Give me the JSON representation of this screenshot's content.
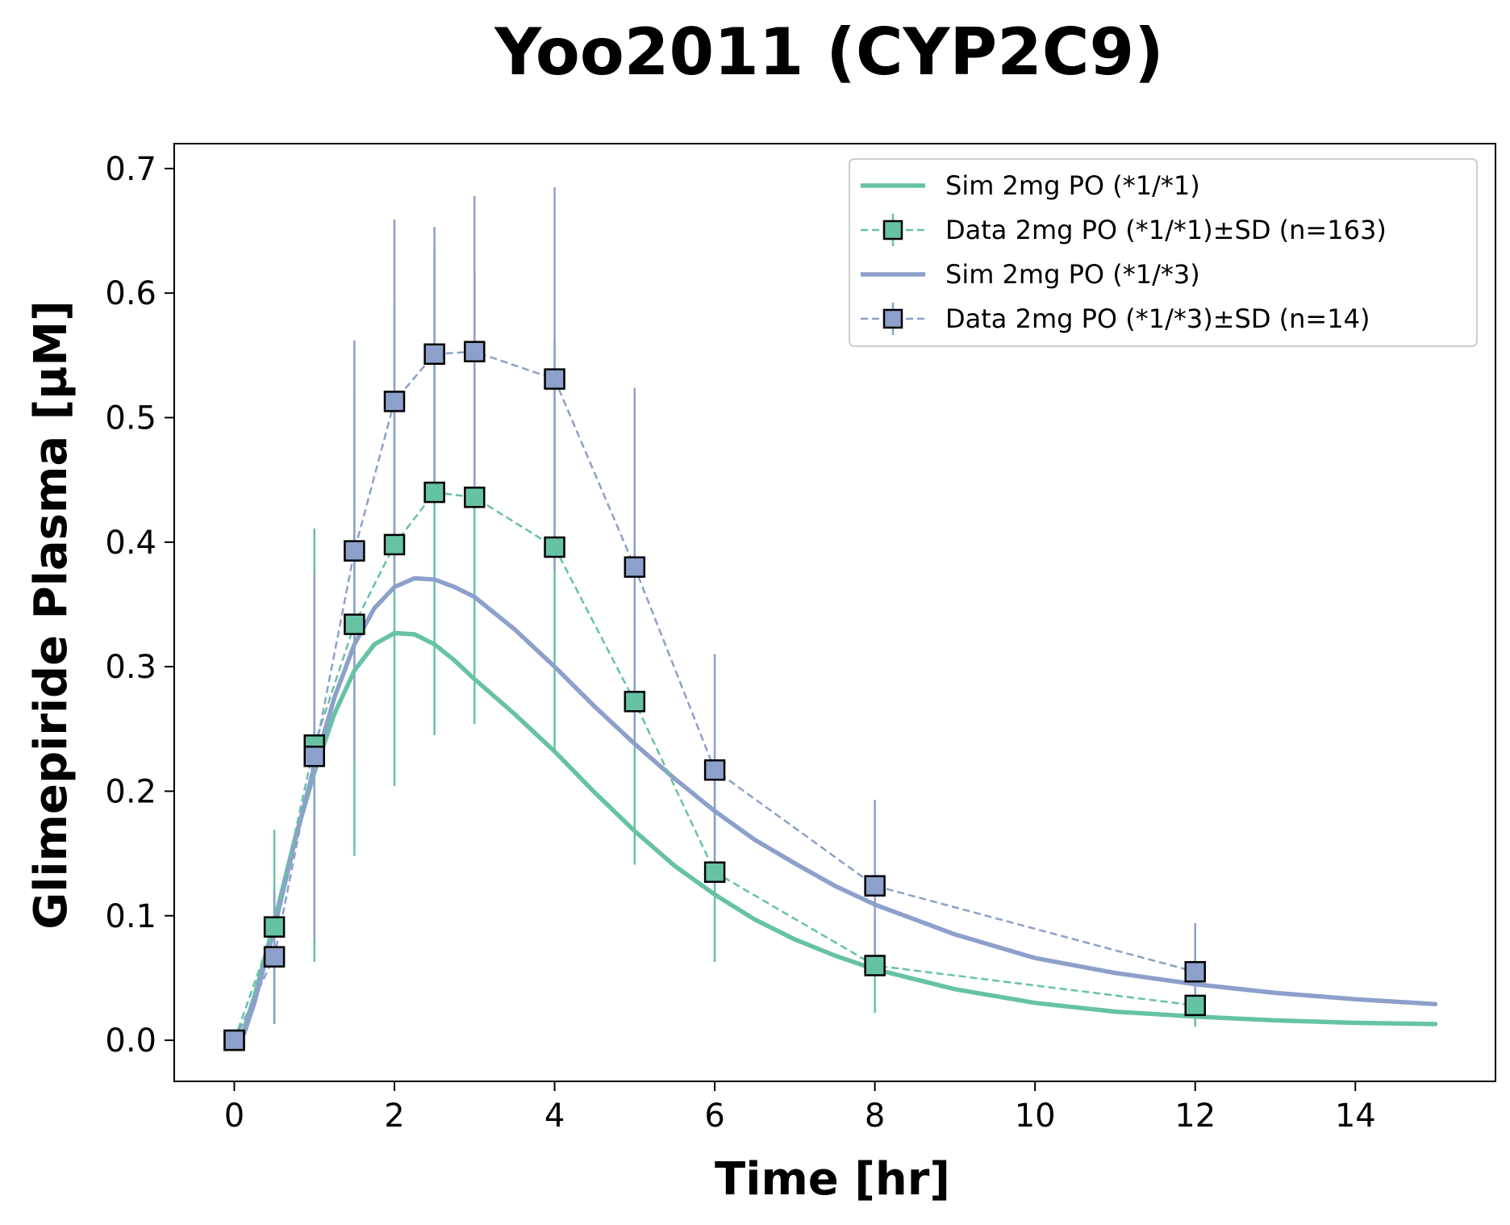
{
  "chart_data": {
    "type": "line",
    "title": "Yoo2011 (CYP2C9)",
    "xlabel": "Time [hr]",
    "ylabel": "Glimepiride Plasma [µM]",
    "xlim": [
      -0.75,
      15.75
    ],
    "ylim": [
      -0.033,
      0.72
    ],
    "xticks": [
      0,
      2,
      4,
      6,
      8,
      10,
      12,
      14
    ],
    "yticks": [
      0.0,
      0.1,
      0.2,
      0.3,
      0.4,
      0.5,
      0.6,
      0.7
    ],
    "xtick_labels": [
      "0",
      "2",
      "4",
      "6",
      "8",
      "10",
      "12",
      "14"
    ],
    "ytick_labels": [
      "0.0",
      "0.1",
      "0.2",
      "0.3",
      "0.4",
      "0.5",
      "0.6",
      "0.7"
    ],
    "grid": false,
    "legend_position": "top-right",
    "series": [
      {
        "name": "Sim 2mg PO (*1/*1)",
        "kind": "simulation",
        "color": "#66c2a5",
        "x": [
          0,
          0.1,
          0.25,
          0.5,
          0.75,
          1.0,
          1.25,
          1.5,
          1.75,
          2.0,
          2.25,
          2.5,
          2.75,
          3.0,
          3.5,
          4.0,
          4.5,
          5.0,
          5.5,
          6.0,
          6.5,
          7.0,
          7.5,
          8.0,
          9.0,
          10.0,
          11.0,
          12.0,
          13.0,
          14.0,
          15.0
        ],
        "y": [
          0.0,
          0.005,
          0.035,
          0.095,
          0.16,
          0.215,
          0.262,
          0.297,
          0.318,
          0.327,
          0.326,
          0.318,
          0.305,
          0.29,
          0.262,
          0.232,
          0.199,
          0.168,
          0.14,
          0.117,
          0.097,
          0.081,
          0.068,
          0.057,
          0.041,
          0.03,
          0.023,
          0.019,
          0.016,
          0.014,
          0.013
        ]
      },
      {
        "name": "Data 2mg PO (*1/*1)±SD (n=163)",
        "kind": "data",
        "color": "#66c2a5",
        "x": [
          0,
          0.5,
          1,
          1.5,
          2,
          2.5,
          3,
          4,
          5,
          6,
          8,
          12
        ],
        "y": [
          0.0,
          0.091,
          0.237,
          0.334,
          0.398,
          0.44,
          0.436,
          0.396,
          0.272,
          0.135,
          0.06,
          0.028
        ],
        "sd": [
          0.0,
          0.078,
          0.174,
          0.186,
          0.194,
          0.195,
          0.182,
          0.165,
          0.131,
          0.072,
          0.038,
          0.017
        ]
      },
      {
        "name": "Sim 2mg PO (*1/*3)",
        "kind": "simulation",
        "color": "#8da0cb",
        "x": [
          0.12,
          0.25,
          0.5,
          0.75,
          1.0,
          1.25,
          1.5,
          1.75,
          2.0,
          2.25,
          2.5,
          2.75,
          3.0,
          3.5,
          4.0,
          4.5,
          5.0,
          5.5,
          6.0,
          6.5,
          7.0,
          7.5,
          8.0,
          9.0,
          10.0,
          11.0,
          12.0,
          13.0,
          14.0,
          15.0
        ],
        "y": [
          0.005,
          0.03,
          0.09,
          0.158,
          0.22,
          0.275,
          0.318,
          0.347,
          0.364,
          0.371,
          0.37,
          0.364,
          0.356,
          0.33,
          0.3,
          0.268,
          0.238,
          0.21,
          0.184,
          0.161,
          0.142,
          0.124,
          0.109,
          0.085,
          0.066,
          0.054,
          0.045,
          0.038,
          0.033,
          0.029
        ]
      },
      {
        "name": "Data 2mg PO (*1/*3)±SD (n=14)",
        "kind": "data",
        "color": "#8da0cb",
        "x": [
          0,
          0.5,
          1,
          1.5,
          2,
          2.5,
          3,
          4,
          5,
          6,
          8,
          12
        ],
        "y": [
          0.0,
          0.067,
          0.228,
          0.393,
          0.513,
          0.551,
          0.553,
          0.531,
          0.38,
          0.217,
          0.124,
          0.055
        ],
        "sd": [
          0.0,
          0.053,
          0.148,
          0.169,
          0.146,
          0.102,
          0.125,
          0.154,
          0.144,
          0.093,
          0.069,
          0.039
        ]
      }
    ]
  }
}
